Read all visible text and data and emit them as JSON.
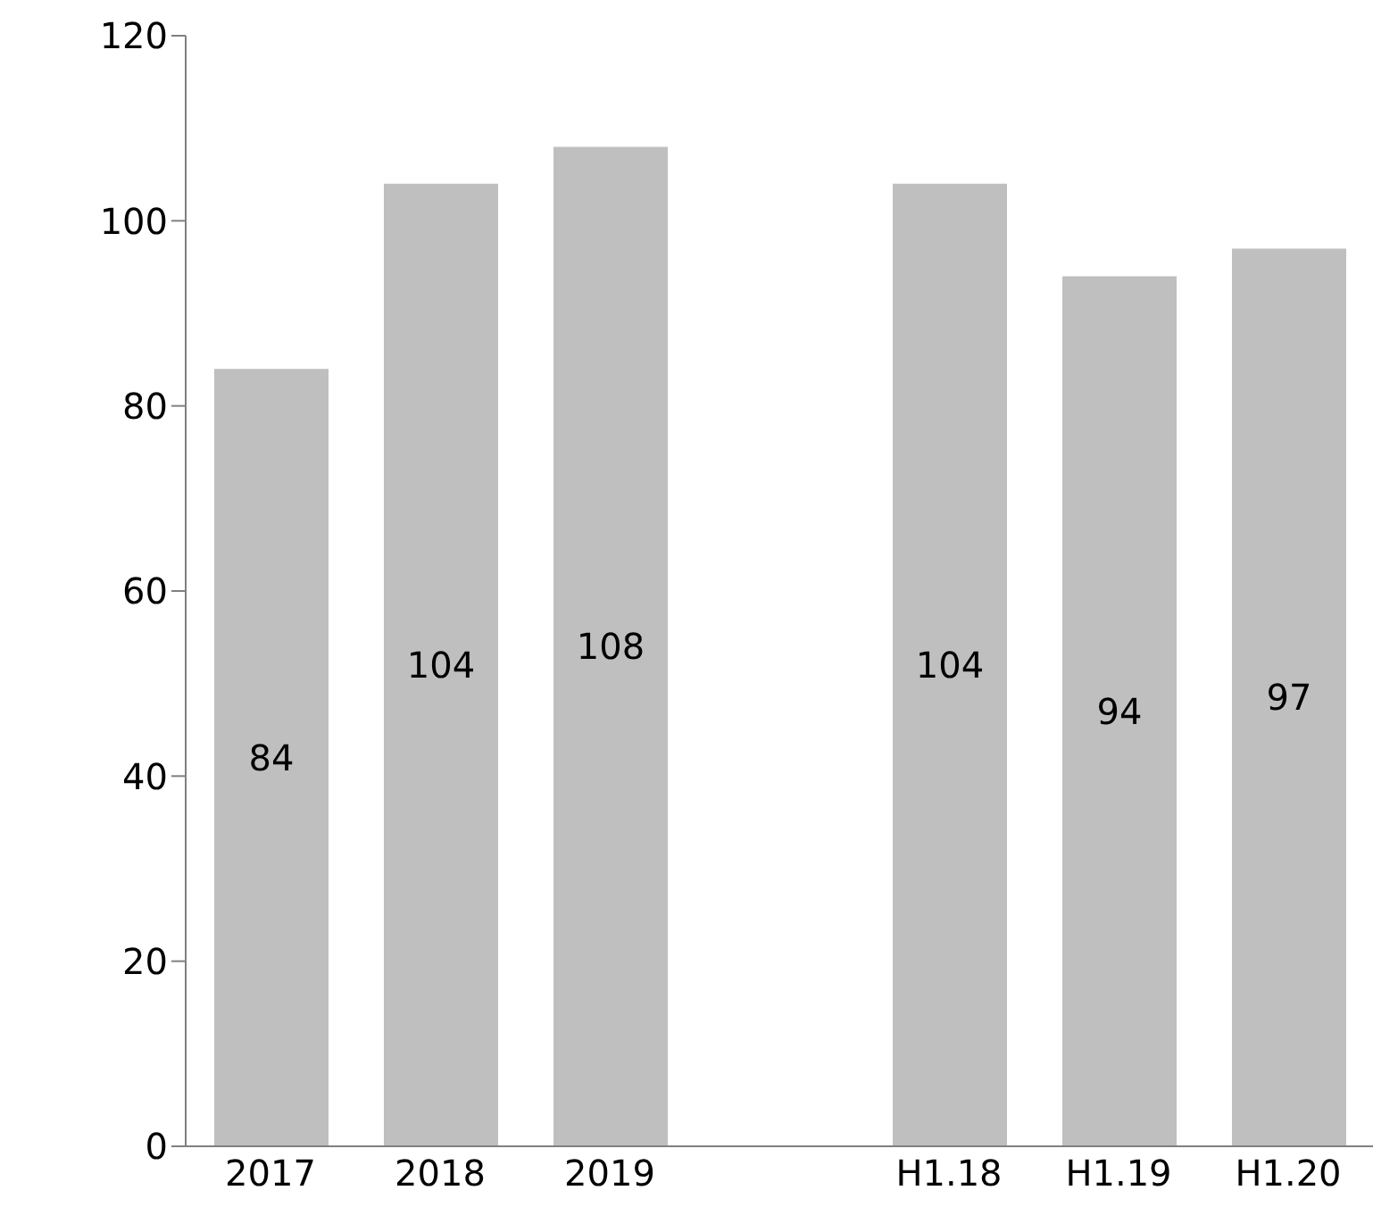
{
  "chart_data": {
    "type": "bar",
    "categories": [
      "2017",
      "2018",
      "2019",
      null,
      "H1.18",
      "H1.19",
      "H1.20"
    ],
    "values": [
      84,
      104,
      108,
      null,
      104,
      94,
      97
    ],
    "color": "#bfbfbf",
    "ylim": [
      0,
      120
    ],
    "yticks": [
      0,
      20,
      40,
      60,
      80,
      100,
      120
    ],
    "grid": false,
    "data_labels": true
  }
}
